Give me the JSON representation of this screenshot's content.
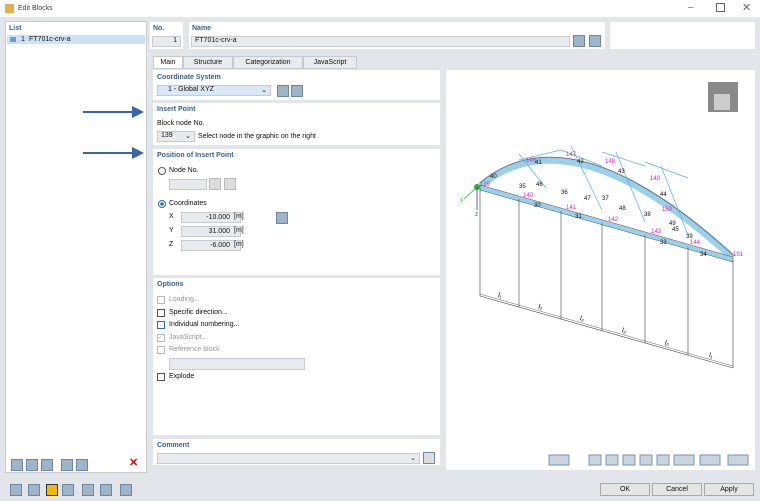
{
  "window": {
    "title": "Edit Blocks"
  },
  "list": {
    "header": "List",
    "items": [
      {
        "number": "1",
        "name": "FT701c-crv-a"
      }
    ]
  },
  "no": {
    "label": "No.",
    "value": "1"
  },
  "name": {
    "label": "Name",
    "value": "FT701c-crv-a"
  },
  "tabs": [
    "Main",
    "Structure",
    "Categorization",
    "JavaScript"
  ],
  "coordinate_system": {
    "title": "Coordinate System",
    "value": "1 - Global XYZ"
  },
  "insert_point": {
    "title": "Insert Point",
    "field_label": "Block node No.",
    "node": "139",
    "hint": "Select node in the graphic on the right"
  },
  "position": {
    "title": "Position of Insert Point",
    "node_option": "Node No.",
    "coords_option": "Coordinates",
    "coords": [
      {
        "axis": "X",
        "value": "-10.000",
        "unit": "[m]"
      },
      {
        "axis": "Y",
        "value": "31.000",
        "unit": "[m]"
      },
      {
        "axis": "Z",
        "value": "-6.000",
        "unit": "[m]"
      }
    ]
  },
  "options": {
    "title": "Options",
    "items": [
      "Loading...",
      "Specific direction...",
      "Individual numbering...",
      "JavaScript...",
      "Reference block"
    ],
    "explode": "Explode"
  },
  "comment": {
    "title": "Comment"
  },
  "graphic": {
    "node_labels": [
      "40",
      "146",
      "41",
      "147",
      "42",
      "148",
      "43",
      "149",
      "44",
      "150",
      "45",
      "151",
      "139",
      "35",
      "46",
      "36",
      "47",
      "37",
      "48",
      "38",
      "49",
      "39",
      "140",
      "30",
      "141",
      "31",
      "142",
      "143",
      "33",
      "144",
      "34"
    ],
    "axis_labels": [
      "X",
      "Z"
    ],
    "dimension_labels": [
      "l₁",
      "l₂",
      "l₂",
      "l₂",
      "l₂",
      "l₁"
    ]
  },
  "buttons": [
    "OK",
    "Cancel",
    "Apply"
  ]
}
